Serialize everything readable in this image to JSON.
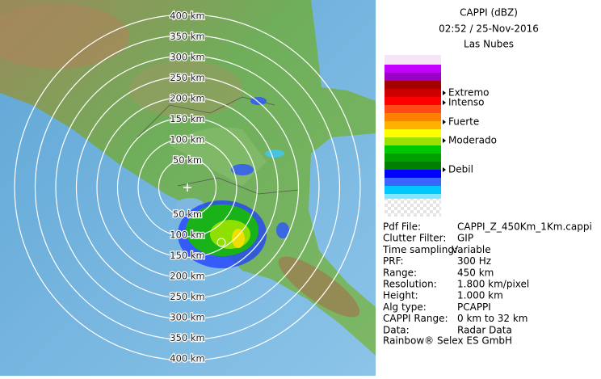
{
  "header": {
    "product": "CAPPI (dBZ)",
    "time": "02:52 / 25-Nov-2016",
    "site": "Las Nubes"
  },
  "range_rings": [
    "50 km",
    "100 km",
    "150 km",
    "200 km",
    "250 km",
    "300 km",
    "350 km",
    "400 km"
  ],
  "legend": {
    "labels": [
      "Extremo",
      "Intenso",
      "Fuerte",
      "Moderado",
      "Debil"
    ]
  },
  "info": {
    "rows": [
      [
        "Pdf File:",
        "CAPPI_Z_450Km_1Km.cappi"
      ],
      [
        "Clutter Filter:",
        "GIP"
      ],
      [
        "Time sampling:",
        "Variable"
      ],
      [
        "PRF:",
        "300 Hz"
      ],
      [
        "Range:",
        "450 km"
      ],
      [
        "Resolution:",
        "1.800 km/pixel"
      ],
      [
        "Height:",
        "1.000 km"
      ],
      [
        "Alg type:",
        "PCAPPI"
      ],
      [
        "CAPPI Range:",
        "0 km to 32 km"
      ],
      [
        "Data:",
        "Radar Data"
      ]
    ],
    "footer": "Rainbow® Selex ES GmbH"
  }
}
